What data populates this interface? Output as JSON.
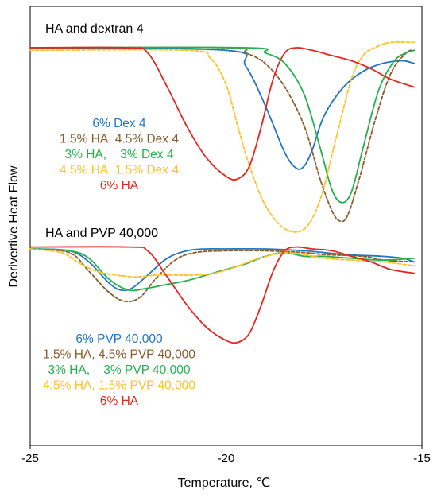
{
  "chart_data": {
    "type": "line",
    "ylabel": "Derivertive Heat Flow",
    "xlabel": "Temperature, ℃",
    "xlim": [
      -25,
      -15
    ],
    "xticks": [
      -25,
      -20,
      -15
    ],
    "xtick_labels": [
      "-25",
      "-20",
      "-15"
    ],
    "grid": false,
    "panels": [
      {
        "title": "HA and dextran 4",
        "legend_placement": "middle-left",
        "series": [
          {
            "name": "6% Dex 4",
            "color": "#1f77c4",
            "dash": "solid",
            "x": [
              -25,
              -20,
              -19.5,
              -19,
              -18.5,
              -18.2,
              -18.0,
              -17.8,
              -17.5,
              -17.0,
              -16.5,
              -16.0,
              -15.5,
              -15.2
            ],
            "y": [
              1.0,
              0.99,
              0.93,
              0.78,
              0.6,
              0.54,
              0.55,
              0.61,
              0.74,
              0.85,
              0.91,
              0.94,
              0.95,
              0.94
            ]
          },
          {
            "name": "1.5% HA, 4.5% Dex 4",
            "color": "#8b5a2b",
            "dash": "dashed",
            "x": [
              -25,
              -20,
              -19.5,
              -19,
              -18.5,
              -18,
              -17.6,
              -17.3,
              -17.1,
              -16.9,
              -16.6,
              -16.2,
              -15.8,
              -15.4,
              -15.2
            ],
            "y": [
              1.0,
              1.0,
              0.98,
              0.94,
              0.85,
              0.7,
              0.5,
              0.38,
              0.34,
              0.36,
              0.5,
              0.72,
              0.9,
              0.98,
              0.99
            ]
          },
          {
            "name": "3% HA,    3% Dex 4",
            "color": "#22b14c",
            "dash": "solid",
            "x": [
              -25,
              -19.5,
              -19,
              -18.5,
              -18.0,
              -17.6,
              -17.3,
              -17.05,
              -16.8,
              -16.5,
              -16.1,
              -15.7,
              -15.4,
              -15.2
            ],
            "y": [
              1.0,
              1.0,
              0.98,
              0.94,
              0.82,
              0.62,
              0.46,
              0.41,
              0.45,
              0.62,
              0.84,
              0.95,
              0.98,
              0.99
            ]
          },
          {
            "name": "4.5% HA, 1.5% Dex 4",
            "color": "#ffc125",
            "dash": "dashed",
            "x": [
              -25,
              -21,
              -20.4,
              -20.0,
              -19.7,
              -19.4,
              -19.0,
              -18.5,
              -18.0,
              -17.6,
              -17.2,
              -16.8,
              -16.5,
              -16.2,
              -15.8,
              -15.2
            ],
            "y": [
              0.99,
              0.99,
              0.96,
              0.86,
              0.7,
              0.55,
              0.4,
              0.31,
              0.31,
              0.42,
              0.65,
              0.88,
              0.97,
              1.0,
              1.02,
              1.02
            ]
          },
          {
            "name": "6% HA",
            "color": "#e8261e",
            "dash": "solid",
            "x": [
              -25,
              -22.5,
              -22.0,
              -21.5,
              -21.0,
              -20.5,
              -20.0,
              -19.7,
              -19.4,
              -19.1,
              -18.8,
              -18.5,
              -18.2,
              -17.8,
              -17.3,
              -16.8,
              -16.3,
              -15.8,
              -15.2
            ],
            "y": [
              1.0,
              1.0,
              0.98,
              0.85,
              0.7,
              0.58,
              0.51,
              0.5,
              0.55,
              0.7,
              0.88,
              0.98,
              1.0,
              0.99,
              0.97,
              0.95,
              0.92,
              0.88,
              0.85
            ]
          }
        ]
      },
      {
        "title": "HA and PVP 40,000",
        "legend_placement": "bottom-left",
        "series": [
          {
            "name": "6% PVP 40,000",
            "color": "#1f77c4",
            "dash": "solid",
            "x": [
              -25,
              -24,
              -23.5,
              -23.0,
              -22.7,
              -22.4,
              -22.0,
              -21.5,
              -21.0,
              -20.5,
              -20.0,
              -19.0,
              -18.0,
              -17.0,
              -16.0,
              -15.5,
              -15.2
            ],
            "y": [
              1.0,
              0.99,
              0.93,
              0.82,
              0.78,
              0.79,
              0.86,
              0.95,
              0.99,
              1.0,
              1.0,
              1.0,
              0.99,
              0.97,
              0.96,
              0.95,
              0.93
            ]
          },
          {
            "name": "1.5% HA, 4.5% PVP 40,000",
            "color": "#8b5a2b",
            "dash": "dashed",
            "x": [
              -25,
              -24.0,
              -23.5,
              -23.0,
              -22.6,
              -22.2,
              -21.8,
              -21.3,
              -20.8,
              -20.0,
              -19.0,
              -18.0,
              -17.5,
              -16.5,
              -16.0,
              -15.2
            ],
            "y": [
              1.0,
              0.98,
              0.88,
              0.77,
              0.72,
              0.74,
              0.84,
              0.94,
              0.98,
              0.99,
              0.99,
              0.98,
              0.97,
              0.96,
              0.94,
              0.93
            ]
          },
          {
            "name": "3% HA,    3% PVP 40,000",
            "color": "#22b14c",
            "dash": "solid",
            "x": [
              -25,
              -24.0,
              -23.5,
              -23.0,
              -22.5,
              -22.0,
              -21.5,
              -21.0,
              -20.5,
              -20.0,
              -19.5,
              -19.0,
              -18.5,
              -18.0,
              -17.5,
              -16.8,
              -16.0,
              -15.2
            ],
            "y": [
              1.0,
              0.99,
              0.95,
              0.84,
              0.78,
              0.79,
              0.81,
              0.83,
              0.86,
              0.89,
              0.92,
              0.96,
              0.98,
              0.96,
              0.96,
              0.95,
              0.94,
              0.95
            ]
          },
          {
            "name": "4.5% HA, 1.5% PVP 40,000",
            "color": "#ffc125",
            "dash": "dashed",
            "x": [
              -25,
              -24.2,
              -23.8,
              -23.3,
              -22.8,
              -22.3,
              -21.8,
              -21.3,
              -20.8,
              -20.3,
              -19.8,
              -19.3,
              -18.8,
              -18.4,
              -18.0,
              -17.5,
              -16.8,
              -16.0,
              -15.2
            ],
            "y": [
              1.0,
              0.98,
              0.93,
              0.88,
              0.86,
              0.85,
              0.86,
              0.86,
              0.86,
              0.87,
              0.9,
              0.94,
              0.97,
              0.98,
              0.97,
              0.95,
              0.94,
              0.93,
              0.91
            ]
          },
          {
            "name": "6% HA",
            "color": "#e8261e",
            "dash": "solid",
            "x": [
              -25,
              -22.5,
              -22.0,
              -21.5,
              -21.0,
              -20.5,
              -20.0,
              -19.7,
              -19.4,
              -19.1,
              -18.8,
              -18.5,
              -18.2,
              -17.8,
              -17.3,
              -16.8,
              -16.3,
              -15.8,
              -15.2
            ],
            "y": [
              1.01,
              1.01,
              0.99,
              0.85,
              0.7,
              0.58,
              0.51,
              0.5,
              0.55,
              0.7,
              0.88,
              0.99,
              1.01,
              1.0,
              0.99,
              0.96,
              0.93,
              0.89,
              0.87
            ]
          }
        ]
      }
    ]
  }
}
